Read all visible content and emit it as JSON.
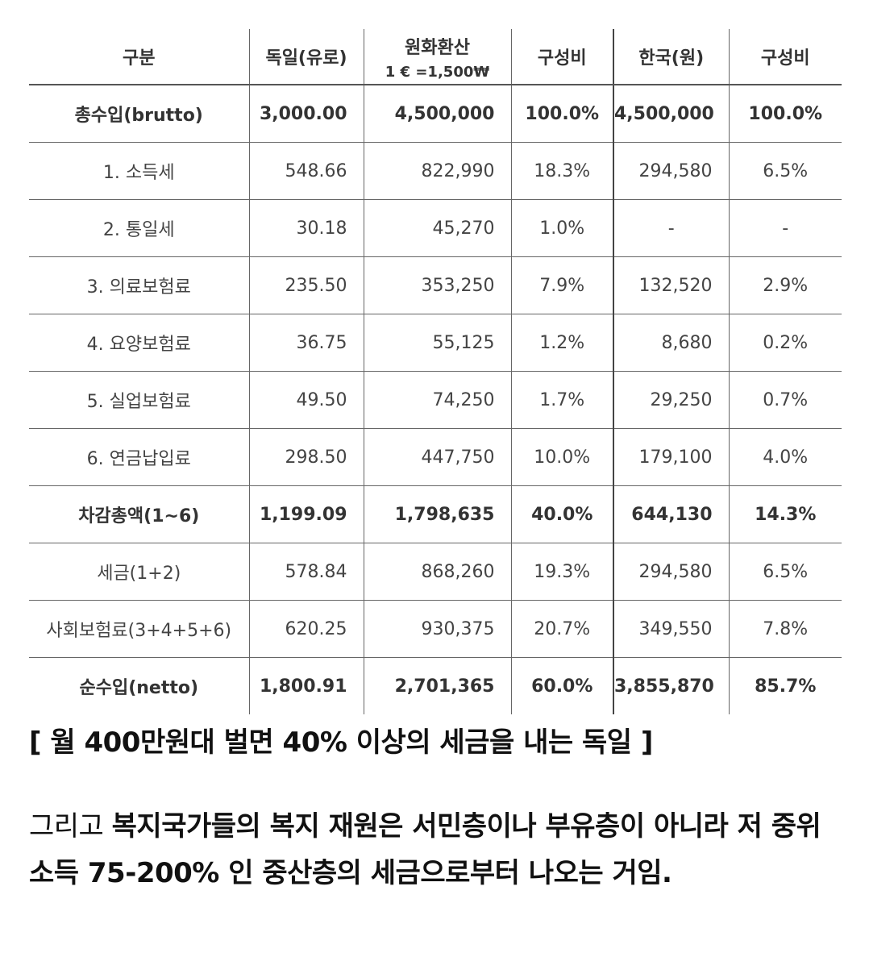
{
  "table": {
    "headers": [
      "구분",
      "독일(유로)",
      "원화환산",
      "구성비",
      "한국(원)",
      "구성비"
    ],
    "header_sub": "1 € =1,500₩",
    "rows": [
      {
        "label": "총수입(brutto)",
        "de_eur": "3,000.00",
        "krw": "4,500,000",
        "de_pct": "100.0%",
        "kr": "4,500,000",
        "kr_pct": "100.0%",
        "bold": true
      },
      {
        "label": "1.  소득세",
        "de_eur": "548.66",
        "krw": "822,990",
        "de_pct": "18.3%",
        "kr": "294,580",
        "kr_pct": "6.5%",
        "bold": false
      },
      {
        "label": "2.  통일세",
        "de_eur": "30.18",
        "krw": "45,270",
        "de_pct": "1.0%",
        "kr": "-",
        "kr_pct": "-",
        "bold": false
      },
      {
        "label": "3.  의료보험료",
        "de_eur": "235.50",
        "krw": "353,250",
        "de_pct": "7.9%",
        "kr": "132,520",
        "kr_pct": "2.9%",
        "bold": false
      },
      {
        "label": "4.  요양보험료",
        "de_eur": "36.75",
        "krw": "55,125",
        "de_pct": "1.2%",
        "kr": "8,680",
        "kr_pct": "0.2%",
        "bold": false
      },
      {
        "label": "5.  실업보험료",
        "de_eur": "49.50",
        "krw": "74,250",
        "de_pct": "1.7%",
        "kr": "29,250",
        "kr_pct": "0.7%",
        "bold": false
      },
      {
        "label": "6.  연금납입료",
        "de_eur": "298.50",
        "krw": "447,750",
        "de_pct": "10.0%",
        "kr": "179,100",
        "kr_pct": "4.0%",
        "bold": false
      },
      {
        "label": "차감총액(1~6)",
        "de_eur": "1,199.09",
        "krw": "1,798,635",
        "de_pct": "40.0%",
        "kr": "644,130",
        "kr_pct": "14.3%",
        "bold": true
      },
      {
        "label": "세금(1+2)",
        "de_eur": "578.84",
        "krw": "868,260",
        "de_pct": "19.3%",
        "kr": "294,580",
        "kr_pct": "6.5%",
        "bold": false
      },
      {
        "label": "사회보험료(3+4+5+6)",
        "de_eur": "620.25",
        "krw": "930,375",
        "de_pct": "20.7%",
        "kr": "349,550",
        "kr_pct": "7.8%",
        "bold": false
      },
      {
        "label": "순수입(netto)",
        "de_eur": "1,800.91",
        "krw": "2,701,365",
        "de_pct": "60.0%",
        "kr": "3,855,870",
        "kr_pct": "85.7%",
        "bold": true
      }
    ]
  },
  "caption": "[ 월 400만원대 벌면 40% 이상의 세금을 내는 독일 ]",
  "paragraph": {
    "lead": "그리고 ",
    "bold": "복지국가들의 복지 재원은 서민층이나 부유층이 아니라 저 중위소득 75-200% 인 중산층의 세금으로부터 나오는 거임."
  }
}
